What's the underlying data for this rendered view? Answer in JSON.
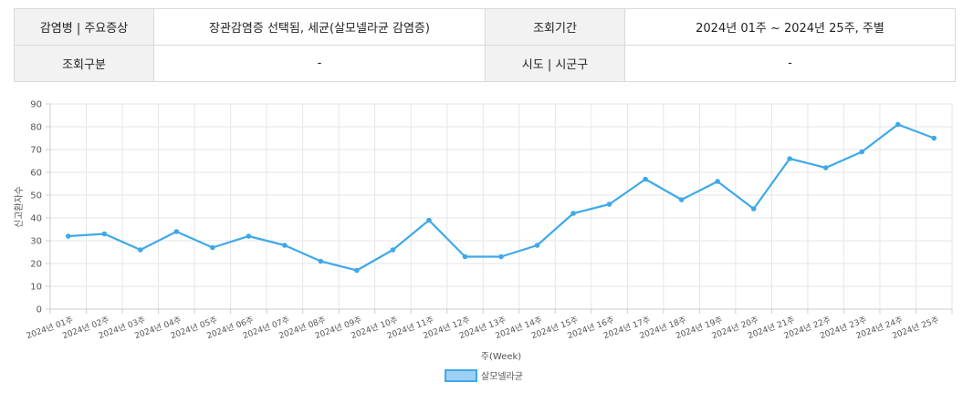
{
  "info": {
    "disease_label": "감염병 | 주요증상",
    "disease_value": "장관감염증 선택됨, 세균(살모넬라균 감염증)",
    "period_label": "조회기간",
    "period_value": "2024년 01주 ~ 2024년 25주, 주별",
    "category_label": "조회구분",
    "category_value": "-",
    "region_label": "시도 | 시군구",
    "region_value": "-"
  },
  "colors": {
    "line": "#3fa9e8",
    "legend_fill": "#9cd0f5",
    "grid": "#e6e6e6"
  },
  "chart_data": {
    "type": "line",
    "xlabel": "주(Week)",
    "ylabel": "신고환자수",
    "ylim": [
      0,
      90
    ],
    "yticks": [
      0,
      10,
      20,
      30,
      40,
      50,
      60,
      70,
      80,
      90
    ],
    "grid": true,
    "legend_position": "bottom-center",
    "categories": [
      "2024년 01주",
      "2024년 02주",
      "2024년 03주",
      "2024년 04주",
      "2024년 05주",
      "2024년 06주",
      "2024년 07주",
      "2024년 08주",
      "2024년 09주",
      "2024년 10주",
      "2024년 11주",
      "2024년 12주",
      "2024년 13주",
      "2024년 14주",
      "2024년 15주",
      "2024년 16주",
      "2024년 17주",
      "2024년 18주",
      "2024년 19주",
      "2024년 20주",
      "2024년 21주",
      "2024년 22주",
      "2024년 23주",
      "2024년 24주",
      "2024년 25주"
    ],
    "series": [
      {
        "name": "살모넬라균",
        "values": [
          32,
          33,
          26,
          34,
          27,
          32,
          28,
          21,
          17,
          26,
          39,
          23,
          23,
          28,
          42,
          46,
          57,
          48,
          56,
          44,
          66,
          62,
          69,
          81,
          75
        ]
      }
    ]
  }
}
